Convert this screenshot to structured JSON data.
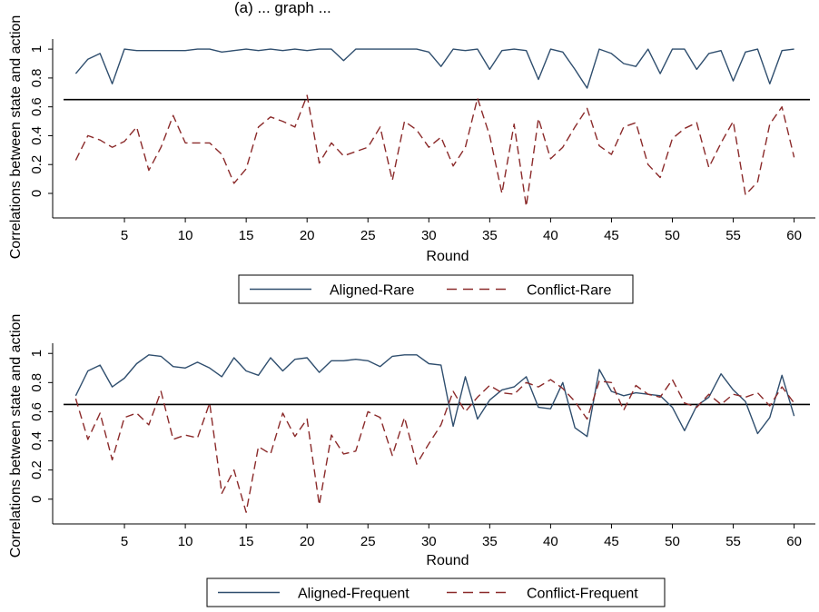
{
  "header_fragment": "(a) ... graph ...",
  "chart_data": [
    {
      "type": "line",
      "title": "",
      "xlabel": "Round",
      "ylabel": "Correlations between state and action",
      "xlim": [
        0,
        61
      ],
      "ylim": [
        -0.17,
        1.07
      ],
      "xticks": [
        5,
        10,
        15,
        20,
        25,
        30,
        35,
        40,
        45,
        50,
        55,
        60
      ],
      "xtick_labels": [
        "5",
        "10",
        "15",
        "20",
        "25",
        "30",
        "35",
        "40",
        "45",
        "50",
        "55",
        "60"
      ],
      "yticks": [
        0,
        0.2,
        0.4,
        0.6,
        0.8,
        1
      ],
      "ytick_labels": [
        "0",
        "0.2",
        "0.4",
        "0.6",
        "0.8",
        "1"
      ],
      "reference_line": 0.65,
      "grid": false,
      "legend_position": "bottom",
      "x": [
        1,
        2,
        3,
        4,
        5,
        6,
        7,
        8,
        9,
        10,
        11,
        12,
        13,
        14,
        15,
        16,
        17,
        18,
        19,
        20,
        21,
        22,
        23,
        24,
        25,
        26,
        27,
        28,
        29,
        30,
        31,
        32,
        33,
        34,
        35,
        36,
        37,
        38,
        39,
        40,
        41,
        42,
        43,
        44,
        45,
        46,
        47,
        48,
        49,
        50,
        51,
        52,
        53,
        54,
        55,
        56,
        57,
        58,
        59,
        60
      ],
      "series": [
        {
          "name": "Aligned-Rare",
          "color": "#2f4e6e",
          "dash": "solid",
          "values": [
            0.83,
            0.93,
            0.97,
            0.76,
            1.0,
            0.99,
            0.99,
            0.99,
            0.99,
            0.99,
            1.0,
            1.0,
            0.98,
            0.99,
            1.0,
            0.99,
            1.0,
            0.99,
            1.0,
            0.99,
            1.0,
            1.0,
            0.92,
            1.0,
            1.0,
            1.0,
            1.0,
            1.0,
            1.0,
            0.98,
            0.88,
            1.0,
            0.99,
            1.0,
            0.86,
            0.99,
            1.0,
            0.99,
            0.79,
            1.0,
            0.98,
            0.86,
            0.73,
            1.0,
            0.97,
            0.9,
            0.88,
            1.0,
            0.83,
            1.0,
            1.0,
            0.86,
            0.97,
            0.99,
            0.78,
            0.98,
            1.0,
            0.76,
            0.99,
            1.0
          ]
        },
        {
          "name": "Conflict-Rare",
          "color": "#8b2a2a",
          "dash": "dashed",
          "values": [
            0.23,
            0.4,
            0.37,
            0.32,
            0.36,
            0.46,
            0.16,
            0.32,
            0.54,
            0.35,
            0.35,
            0.35,
            0.27,
            0.07,
            0.17,
            0.46,
            0.53,
            0.5,
            0.46,
            0.68,
            0.21,
            0.35,
            0.26,
            0.29,
            0.32,
            0.46,
            0.09,
            0.5,
            0.44,
            0.32,
            0.39,
            0.19,
            0.32,
            0.66,
            0.4,
            0.0,
            0.48,
            -0.09,
            0.52,
            0.24,
            0.32,
            0.46,
            0.59,
            0.33,
            0.27,
            0.46,
            0.49,
            0.2,
            0.11,
            0.38,
            0.45,
            0.49,
            0.18,
            0.35,
            0.5,
            -0.01,
            0.08,
            0.48,
            0.6,
            0.25
          ]
        }
      ]
    },
    {
      "type": "line",
      "title": "",
      "xlabel": "Round",
      "ylabel": "Correlations between state and action",
      "xlim": [
        0,
        61
      ],
      "ylim": [
        -0.17,
        1.07
      ],
      "xticks": [
        5,
        10,
        15,
        20,
        25,
        30,
        35,
        40,
        45,
        50,
        55,
        60
      ],
      "xtick_labels": [
        "5",
        "10",
        "15",
        "20",
        "25",
        "30",
        "35",
        "40",
        "45",
        "50",
        "55",
        "60"
      ],
      "yticks": [
        0,
        0.2,
        0.4,
        0.6,
        0.8,
        1
      ],
      "ytick_labels": [
        "0",
        "0.2",
        "0.4",
        "0.6",
        "0.8",
        "1"
      ],
      "reference_line": 0.65,
      "grid": false,
      "legend_position": "bottom",
      "x": [
        1,
        2,
        3,
        4,
        5,
        6,
        7,
        8,
        9,
        10,
        11,
        12,
        13,
        14,
        15,
        16,
        17,
        18,
        19,
        20,
        21,
        22,
        23,
        24,
        25,
        26,
        27,
        28,
        29,
        30,
        31,
        32,
        33,
        34,
        35,
        36,
        37,
        38,
        39,
        40,
        41,
        42,
        43,
        44,
        45,
        46,
        47,
        48,
        49,
        50,
        51,
        52,
        53,
        54,
        55,
        56,
        57,
        58,
        59,
        60
      ],
      "series": [
        {
          "name": "Aligned-Frequent",
          "color": "#2f4e6e",
          "dash": "solid",
          "values": [
            0.71,
            0.88,
            0.92,
            0.77,
            0.83,
            0.93,
            0.99,
            0.98,
            0.91,
            0.9,
            0.94,
            0.9,
            0.84,
            0.97,
            0.88,
            0.85,
            0.97,
            0.88,
            0.96,
            0.97,
            0.87,
            0.95,
            0.95,
            0.96,
            0.95,
            0.91,
            0.98,
            0.99,
            0.99,
            0.93,
            0.92,
            0.5,
            0.84,
            0.55,
            0.68,
            0.75,
            0.77,
            0.84,
            0.63,
            0.62,
            0.8,
            0.49,
            0.43,
            0.89,
            0.74,
            0.71,
            0.73,
            0.72,
            0.71,
            0.63,
            0.47,
            0.64,
            0.7,
            0.86,
            0.75,
            0.67,
            0.45,
            0.56,
            0.85,
            0.57
          ]
        },
        {
          "name": "Conflict-Frequent",
          "color": "#8b2a2a",
          "dash": "dashed",
          "values": [
            0.69,
            0.41,
            0.59,
            0.27,
            0.56,
            0.59,
            0.51,
            0.74,
            0.41,
            0.44,
            0.42,
            0.66,
            0.04,
            0.2,
            -0.09,
            0.36,
            0.31,
            0.59,
            0.43,
            0.55,
            -0.04,
            0.44,
            0.31,
            0.33,
            0.6,
            0.56,
            0.3,
            0.56,
            0.24,
            0.38,
            0.51,
            0.74,
            0.6,
            0.7,
            0.78,
            0.73,
            0.72,
            0.8,
            0.77,
            0.82,
            0.76,
            0.67,
            0.55,
            0.81,
            0.8,
            0.61,
            0.78,
            0.72,
            0.7,
            0.82,
            0.66,
            0.63,
            0.72,
            0.65,
            0.72,
            0.7,
            0.73,
            0.64,
            0.77,
            0.66
          ]
        }
      ]
    }
  ]
}
